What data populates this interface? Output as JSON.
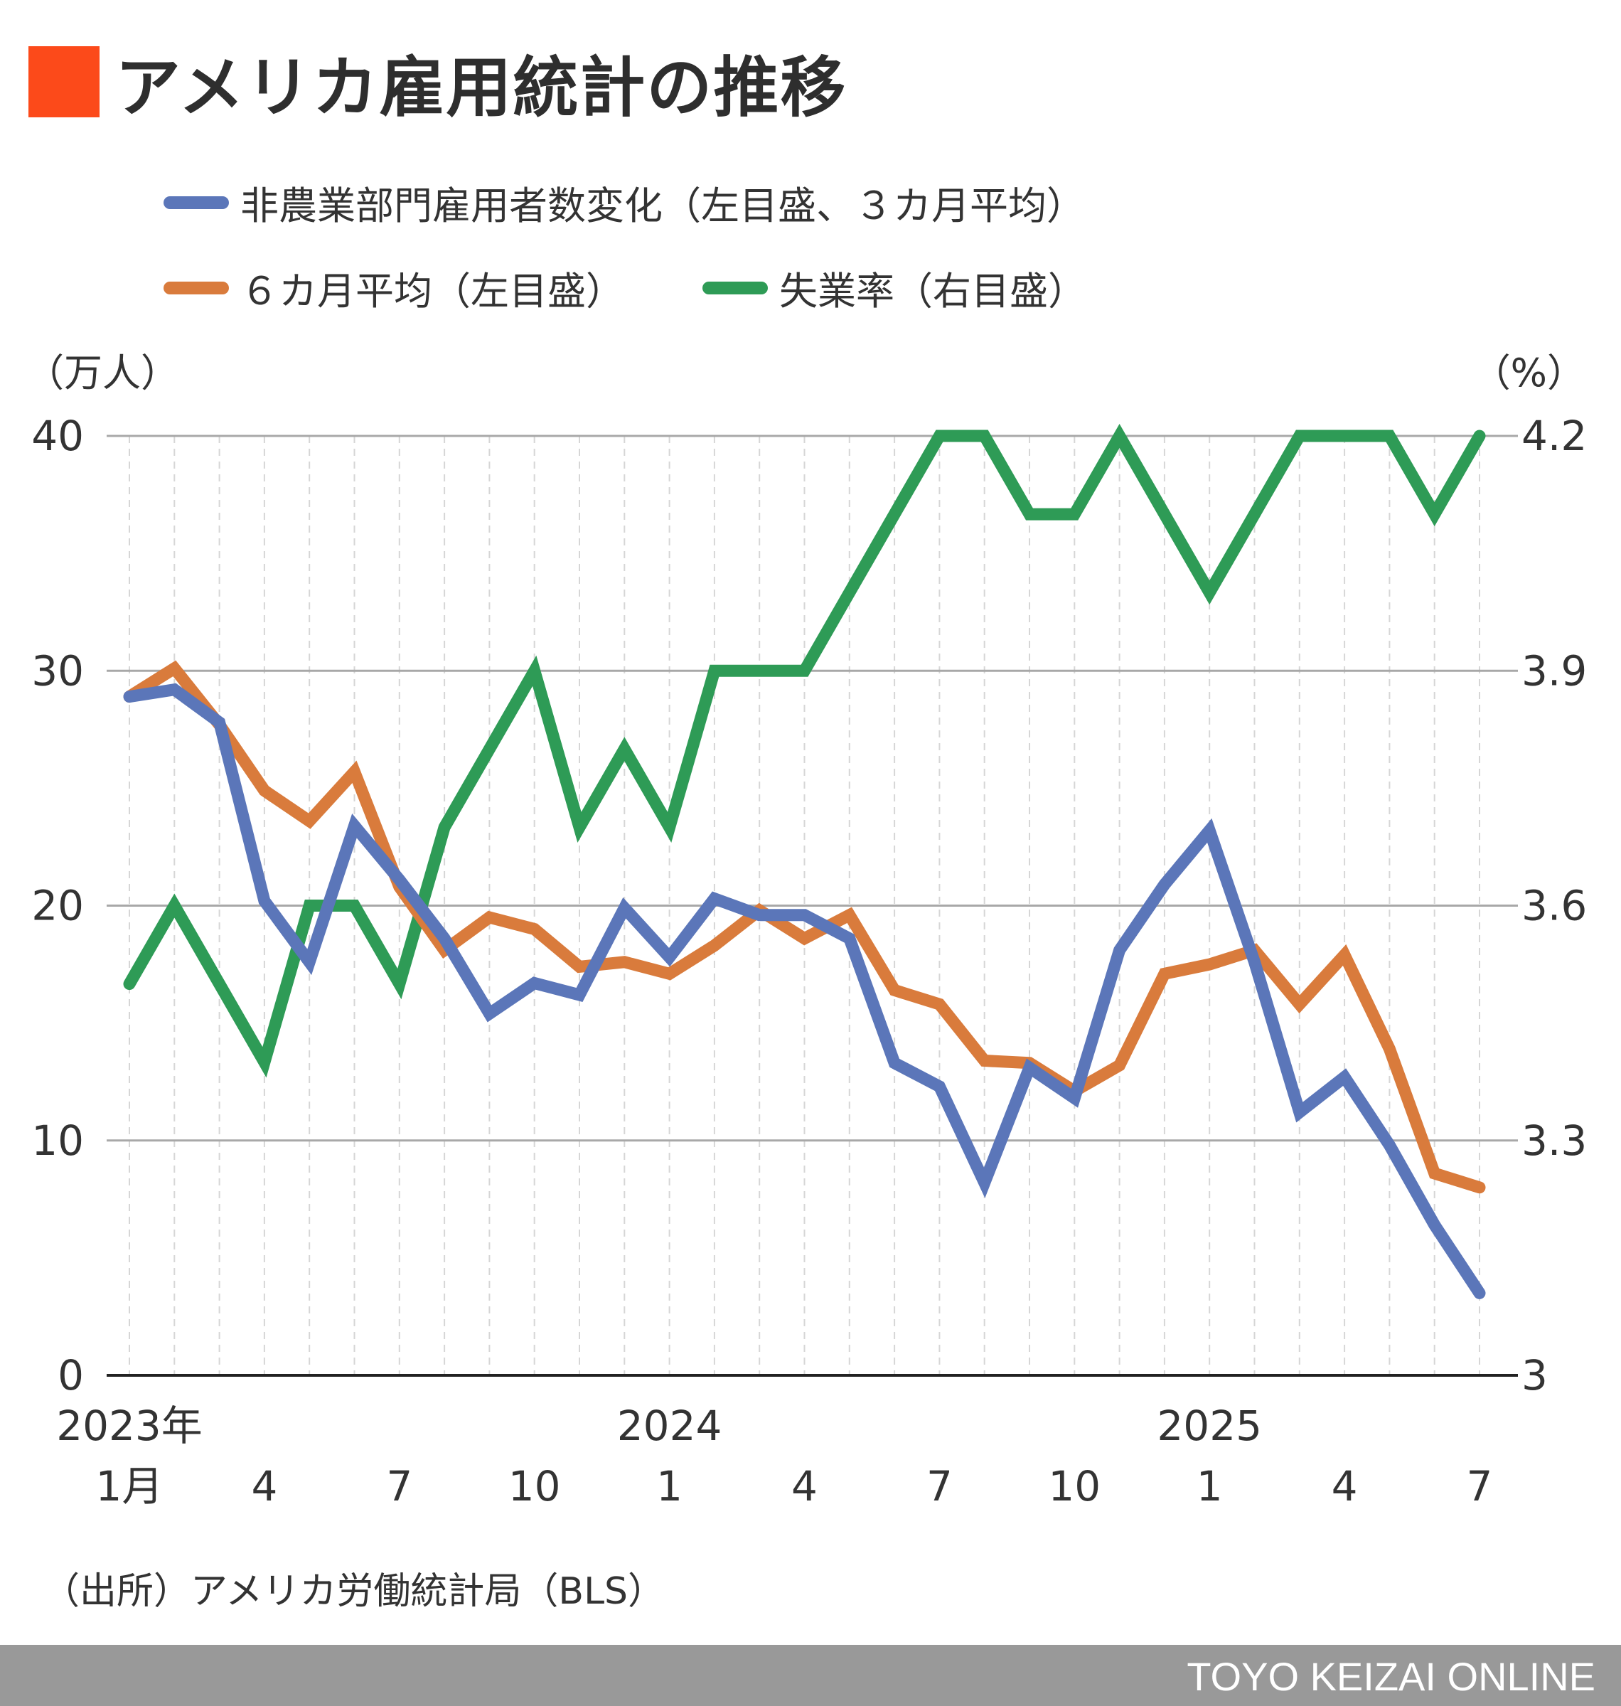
{
  "title": "アメリカ雇用統計の推移",
  "colors": {
    "title_mark": "#fc4a1a",
    "payrolls": "#5b76b9",
    "avg6": "#d97b3c",
    "unemployment": "#2e9b56"
  },
  "left_unit": "（万人）",
  "right_unit": "（%）",
  "source": "（出所）アメリカ労働統計局（BLS）",
  "brand": "TOYO KEIZAI ONLINE",
  "chart_data": {
    "type": "line",
    "x": [
      "2023-01",
      "2023-02",
      "2023-03",
      "2023-04",
      "2023-05",
      "2023-06",
      "2023-07",
      "2023-08",
      "2023-09",
      "2023-10",
      "2023-11",
      "2023-12",
      "2024-01",
      "2024-02",
      "2024-03",
      "2024-04",
      "2024-05",
      "2024-06",
      "2024-07",
      "2024-08",
      "2024-09",
      "2024-10",
      "2024-11",
      "2024-12",
      "2025-01",
      "2025-02",
      "2025-03",
      "2025-04",
      "2025-05",
      "2025-06",
      "2025-07"
    ],
    "x_tick_labels": [
      {
        "index": 0,
        "year": "2023年",
        "month": "1月"
      },
      {
        "index": 3,
        "year": "",
        "month": "4"
      },
      {
        "index": 6,
        "year": "",
        "month": "7"
      },
      {
        "index": 9,
        "year": "",
        "month": "10"
      },
      {
        "index": 12,
        "year": "2024",
        "month": "1"
      },
      {
        "index": 15,
        "year": "",
        "month": "4"
      },
      {
        "index": 18,
        "year": "",
        "month": "7"
      },
      {
        "index": 21,
        "year": "",
        "month": "10"
      },
      {
        "index": 24,
        "year": "2025",
        "month": "1"
      },
      {
        "index": 27,
        "year": "",
        "month": "4"
      },
      {
        "index": 30,
        "year": "",
        "month": "7"
      }
    ],
    "left_axis": {
      "ylim": [
        0,
        40
      ],
      "ticks": [
        "0",
        "10",
        "20",
        "30",
        "40"
      ]
    },
    "right_axis": {
      "ylim": [
        3.0,
        4.2
      ],
      "ticks": [
        "3",
        "3.3",
        "3.6",
        "3.9",
        "4.2"
      ]
    },
    "grid": true,
    "legend_position": "top",
    "series": [
      {
        "name": "非農業部門雇用者数変化（左目盛、３カ月平均）",
        "axis": "left",
        "color": "#5b76b9",
        "values": [
          28.9,
          29.2,
          27.8,
          20.2,
          17.6,
          23.4,
          21.1,
          18.6,
          15.4,
          16.7,
          16.2,
          19.9,
          17.8,
          20.3,
          19.6,
          19.6,
          18.6,
          13.3,
          12.3,
          8.2,
          13.1,
          11.8,
          18.1,
          20.9,
          23.2,
          17.6,
          11.2,
          12.7,
          9.8,
          6.4,
          3.5
        ]
      },
      {
        "name": "６カ月平均（左目盛）",
        "axis": "left",
        "color": "#d97b3c",
        "values": [
          28.9,
          30.1,
          27.7,
          24.9,
          23.6,
          25.7,
          20.8,
          18.1,
          19.5,
          19.0,
          17.4,
          17.6,
          17.1,
          18.3,
          19.8,
          18.6,
          19.6,
          16.4,
          15.8,
          13.4,
          13.3,
          12.1,
          13.2,
          17.1,
          17.5,
          18.1,
          15.8,
          17.9,
          13.9,
          8.6,
          8.0
        ]
      },
      {
        "name": "失業率（右目盛）",
        "axis": "right",
        "color": "#2e9b56",
        "values": [
          3.5,
          3.6,
          3.5,
          3.4,
          3.6,
          3.6,
          3.5,
          3.7,
          3.8,
          3.9,
          3.7,
          3.8,
          3.7,
          3.9,
          3.9,
          3.9,
          4.0,
          4.1,
          4.2,
          4.2,
          4.1,
          4.1,
          4.2,
          4.1,
          4.0,
          4.1,
          4.2,
          4.2,
          4.2,
          4.1,
          4.2
        ]
      }
    ]
  }
}
